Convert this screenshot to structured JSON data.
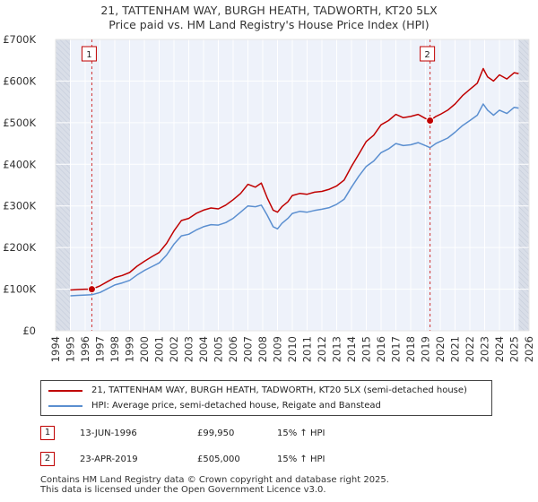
{
  "header": {
    "title_line1": "21, TATTENHAM WAY, BURGH HEATH, TADWORTH, KT20 5LX",
    "title_line2": "Price paid vs. HM Land Registry's House Price Index (HPI)"
  },
  "chart_data": {
    "type": "line",
    "x_range": [
      1994,
      2026
    ],
    "y_range": [
      0,
      700000
    ],
    "x_ticks": [
      1994,
      1995,
      1996,
      1997,
      1998,
      1999,
      2000,
      2001,
      2002,
      2003,
      2004,
      2005,
      2006,
      2007,
      2008,
      2009,
      2010,
      2011,
      2012,
      2013,
      2014,
      2015,
      2016,
      2017,
      2018,
      2019,
      2020,
      2021,
      2022,
      2023,
      2024,
      2025,
      2026
    ],
    "y_ticks": [
      {
        "value": 0,
        "label": "£0"
      },
      {
        "value": 100000,
        "label": "£100K"
      },
      {
        "value": 200000,
        "label": "£200K"
      },
      {
        "value": 300000,
        "label": "£300K"
      },
      {
        "value": 400000,
        "label": "£400K"
      },
      {
        "value": 500000,
        "label": "£500K"
      },
      {
        "value": 600000,
        "label": "£600K"
      },
      {
        "value": 700000,
        "label": "£700K"
      }
    ],
    "shaded_ranges": [
      [
        1994,
        1995
      ],
      [
        2025.3,
        2026
      ]
    ],
    "grid": true,
    "colors": {
      "property": "#c00000",
      "hpi": "#5b8fd0",
      "plot_bg": "#eef2fa",
      "shade": "#d9dee8",
      "grid": "#ffffff",
      "marker_line": "#d03030"
    },
    "series": [
      {
        "name": "21, TATTENHAM WAY, BURGH HEATH, TADWORTH, KT20 5LX (semi-detached house)",
        "color": "#c00000",
        "x": [
          1995.0,
          1995.5,
          1996.0,
          1996.45,
          1997.0,
          1997.5,
          1998.0,
          1998.5,
          1999.0,
          1999.5,
          2000.0,
          2000.5,
          2001.0,
          2001.5,
          2002.0,
          2002.5,
          2003.0,
          2003.5,
          2004.0,
          2004.5,
          2005.0,
          2005.5,
          2006.0,
          2006.5,
          2007.0,
          2007.5,
          2007.9,
          2008.3,
          2008.7,
          2009.0,
          2009.3,
          2009.7,
          2010.0,
          2010.5,
          2011.0,
          2011.5,
          2012.0,
          2012.5,
          2013.0,
          2013.5,
          2014.0,
          2014.5,
          2015.0,
          2015.5,
          2016.0,
          2016.5,
          2017.0,
          2017.5,
          2018.0,
          2018.5,
          2019.0,
          2019.31,
          2019.7,
          2020.0,
          2020.5,
          2021.0,
          2021.5,
          2022.0,
          2022.5,
          2022.9,
          2023.2,
          2023.6,
          2024.0,
          2024.5,
          2025.0,
          2025.3
        ],
        "y": [
          98000,
          99000,
          100000,
          99950,
          108000,
          118000,
          128000,
          133000,
          140000,
          155000,
          167000,
          178000,
          188000,
          210000,
          240000,
          265000,
          270000,
          282000,
          290000,
          295000,
          293000,
          302000,
          315000,
          330000,
          352000,
          345000,
          355000,
          320000,
          290000,
          285000,
          298000,
          310000,
          325000,
          330000,
          328000,
          333000,
          335000,
          340000,
          348000,
          362000,
          395000,
          425000,
          455000,
          470000,
          495000,
          505000,
          520000,
          512000,
          515000,
          520000,
          510000,
          505000,
          515000,
          520000,
          530000,
          545000,
          565000,
          580000,
          595000,
          630000,
          610000,
          600000,
          615000,
          605000,
          620000,
          618000
        ]
      },
      {
        "name": "HPI: Average price, semi-detached house, Reigate and Banstead",
        "color": "#5b8fd0",
        "x": [
          1995.0,
          1995.5,
          1996.0,
          1996.45,
          1997.0,
          1997.5,
          1998.0,
          1998.5,
          1999.0,
          1999.5,
          2000.0,
          2000.5,
          2001.0,
          2001.5,
          2002.0,
          2002.5,
          2003.0,
          2003.5,
          2004.0,
          2004.5,
          2005.0,
          2005.5,
          2006.0,
          2006.5,
          2007.0,
          2007.5,
          2007.9,
          2008.3,
          2008.7,
          2009.0,
          2009.3,
          2009.7,
          2010.0,
          2010.5,
          2011.0,
          2011.5,
          2012.0,
          2012.5,
          2013.0,
          2013.5,
          2014.0,
          2014.5,
          2015.0,
          2015.5,
          2016.0,
          2016.5,
          2017.0,
          2017.5,
          2018.0,
          2018.5,
          2019.0,
          2019.31,
          2019.7,
          2020.0,
          2020.5,
          2021.0,
          2021.5,
          2022.0,
          2022.5,
          2022.9,
          2023.2,
          2023.6,
          2024.0,
          2024.5,
          2025.0,
          2025.3
        ],
        "y": [
          84000,
          85000,
          86000,
          86500,
          92000,
          101000,
          110000,
          115000,
          121000,
          134000,
          145000,
          154000,
          163000,
          182000,
          208000,
          228000,
          232000,
          242000,
          250000,
          255000,
          254000,
          260000,
          270000,
          285000,
          300000,
          298000,
          302000,
          278000,
          250000,
          245000,
          258000,
          270000,
          282000,
          287000,
          285000,
          289000,
          292000,
          296000,
          304000,
          316000,
          345000,
          372000,
          395000,
          408000,
          428000,
          437000,
          450000,
          445000,
          447000,
          452000,
          445000,
          440000,
          450000,
          455000,
          463000,
          477000,
          493000,
          505000,
          518000,
          545000,
          530000,
          518000,
          530000,
          522000,
          537000,
          535000
        ]
      }
    ],
    "sales": [
      {
        "n": "1",
        "x": 1996.45,
        "y": 99950,
        "date": "13-JUN-1996",
        "price": "£99,950",
        "hpi": "15% ↑ HPI"
      },
      {
        "n": "2",
        "x": 2019.31,
        "y": 505000,
        "date": "23-APR-2019",
        "price": "£505,000",
        "hpi": "15% ↑ HPI"
      }
    ]
  },
  "legend": {
    "property": "21, TATTENHAM WAY, BURGH HEATH, TADWORTH, KT20 5LX (semi-detached house)",
    "hpi": "HPI: Average price, semi-detached house, Reigate and Banstead"
  },
  "footer": {
    "line1": "Contains HM Land Registry data © Crown copyright and database right 2025.",
    "line2": "This data is licensed under the Open Government Licence v3.0."
  }
}
